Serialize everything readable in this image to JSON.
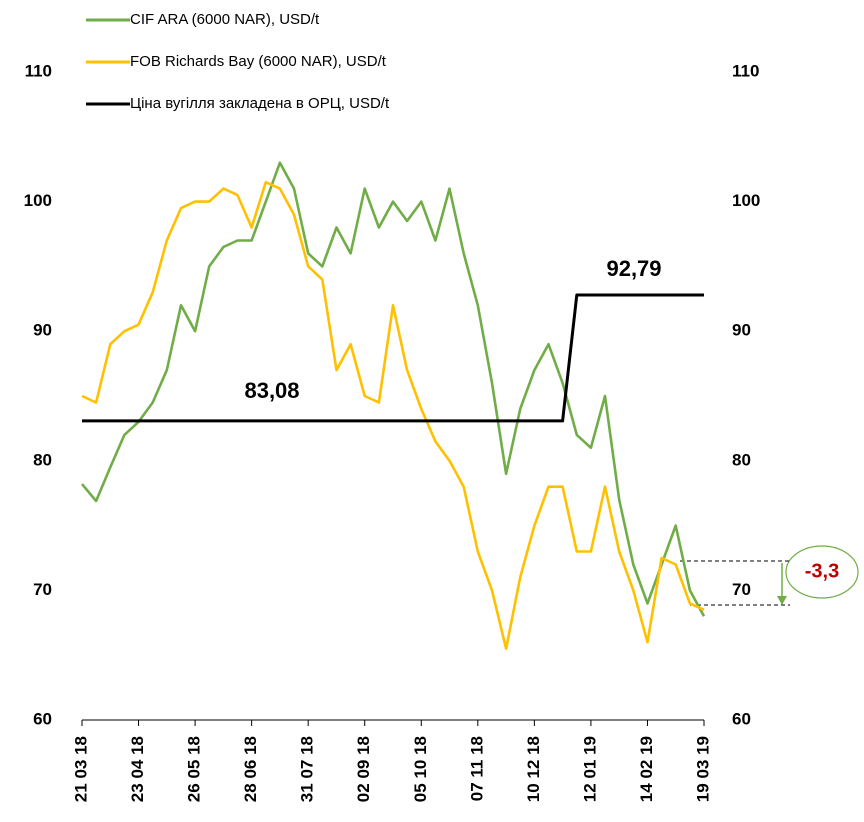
{
  "chart_data": {
    "type": "line",
    "categories": [
      "21 03 18",
      null,
      null,
      null,
      "23 04 18",
      null,
      null,
      null,
      "26 05 18",
      null,
      null,
      null,
      "28 06 18",
      null,
      null,
      null,
      "31 07 18",
      null,
      null,
      null,
      "02 09 18",
      null,
      null,
      null,
      "05 10 18",
      null,
      null,
      null,
      "07 11 18",
      null,
      null,
      null,
      "10 12 18",
      null,
      null,
      null,
      "12 01 19",
      null,
      null,
      null,
      "14 02 19",
      null,
      null,
      null,
      "19 03 19"
    ],
    "series": [
      {
        "name": "CIF ARA (6000 NAR), USD/t",
        "color": "#70ad47",
        "values": [
          78.2,
          76.9,
          79.5,
          82,
          83,
          84.5,
          87,
          92,
          90,
          95,
          96.5,
          97,
          97,
          100,
          103,
          101,
          96,
          95,
          98,
          96,
          101,
          98,
          100,
          98.5,
          100,
          97,
          101,
          96,
          92,
          86,
          79,
          84,
          87,
          89,
          86,
          82,
          81,
          85,
          77,
          72,
          69,
          72,
          75,
          70,
          68
        ]
      },
      {
        "name": "FOB Richards Bay (6000 NAR), USD/t",
        "color": "#ffc000",
        "values": [
          85,
          84.5,
          89,
          90,
          90.5,
          93,
          97,
          99.5,
          100,
          100,
          101,
          100.5,
          98,
          101.5,
          101,
          99,
          95,
          94,
          87,
          89,
          85,
          84.5,
          92,
          87,
          84,
          81.5,
          80,
          78,
          73,
          70,
          65.5,
          71,
          75,
          78,
          78,
          73,
          73,
          78,
          73,
          70,
          66,
          72.5,
          72,
          69,
          68.5
        ]
      },
      {
        "name": "Ціна вугілля закладена в ОРЦ, USD/t",
        "color": "#000000",
        "values": [
          83.08,
          83.08,
          83.08,
          83.08,
          83.08,
          83.08,
          83.08,
          83.08,
          83.08,
          83.08,
          83.08,
          83.08,
          83.08,
          83.08,
          83.08,
          83.08,
          83.08,
          83.08,
          83.08,
          83.08,
          83.08,
          83.08,
          83.08,
          83.08,
          83.08,
          83.08,
          83.08,
          83.08,
          83.08,
          83.08,
          83.08,
          83.08,
          83.08,
          83.08,
          83.08,
          92.79,
          92.79,
          92.79,
          92.79,
          92.79,
          92.79,
          92.79,
          92.79,
          92.79,
          92.79
        ]
      }
    ],
    "annotations": [
      "83,08",
      "92,79",
      "-3,3"
    ],
    "ylim": [
      60,
      110
    ],
    "yticks": [
      60,
      70,
      80,
      90,
      100,
      110
    ],
    "y2lim": [
      60,
      110
    ],
    "y2ticks": [
      60,
      70,
      80,
      90,
      100,
      110
    ],
    "grid": false,
    "legend": "top-left"
  }
}
